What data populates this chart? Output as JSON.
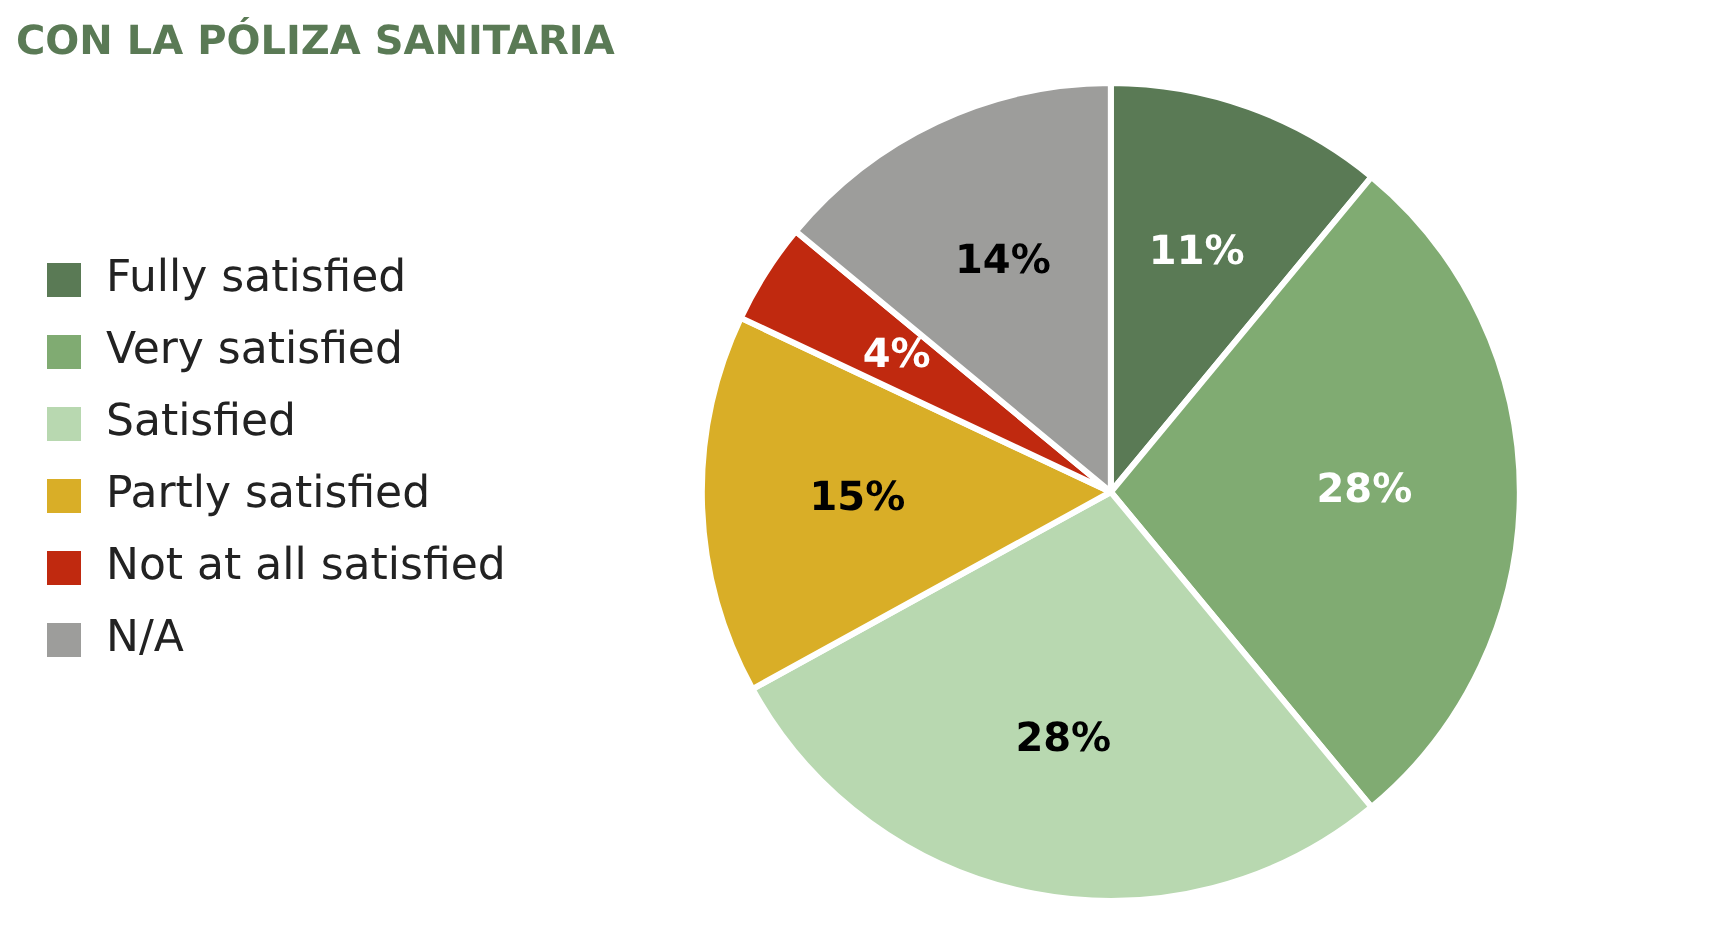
{
  "chart_data": {
    "type": "pie",
    "title": "CON LA PÓLIZA SANITARIA",
    "categories": [
      "Fully satisfied",
      "Very satisfied",
      "Satisfied",
      "Partly satisfied",
      "Not at all satisfied",
      "N/A"
    ],
    "values": [
      11,
      28,
      28,
      15,
      4,
      14
    ],
    "colors": [
      "#5a7a55",
      "#80ab72",
      "#b8d8b0",
      "#d9ae27",
      "#c0290f",
      "#9d9d9b"
    ],
    "value_labels": [
      "11%",
      "28%",
      "28%",
      "15%",
      "4%",
      "14%"
    ],
    "legend": "left"
  }
}
